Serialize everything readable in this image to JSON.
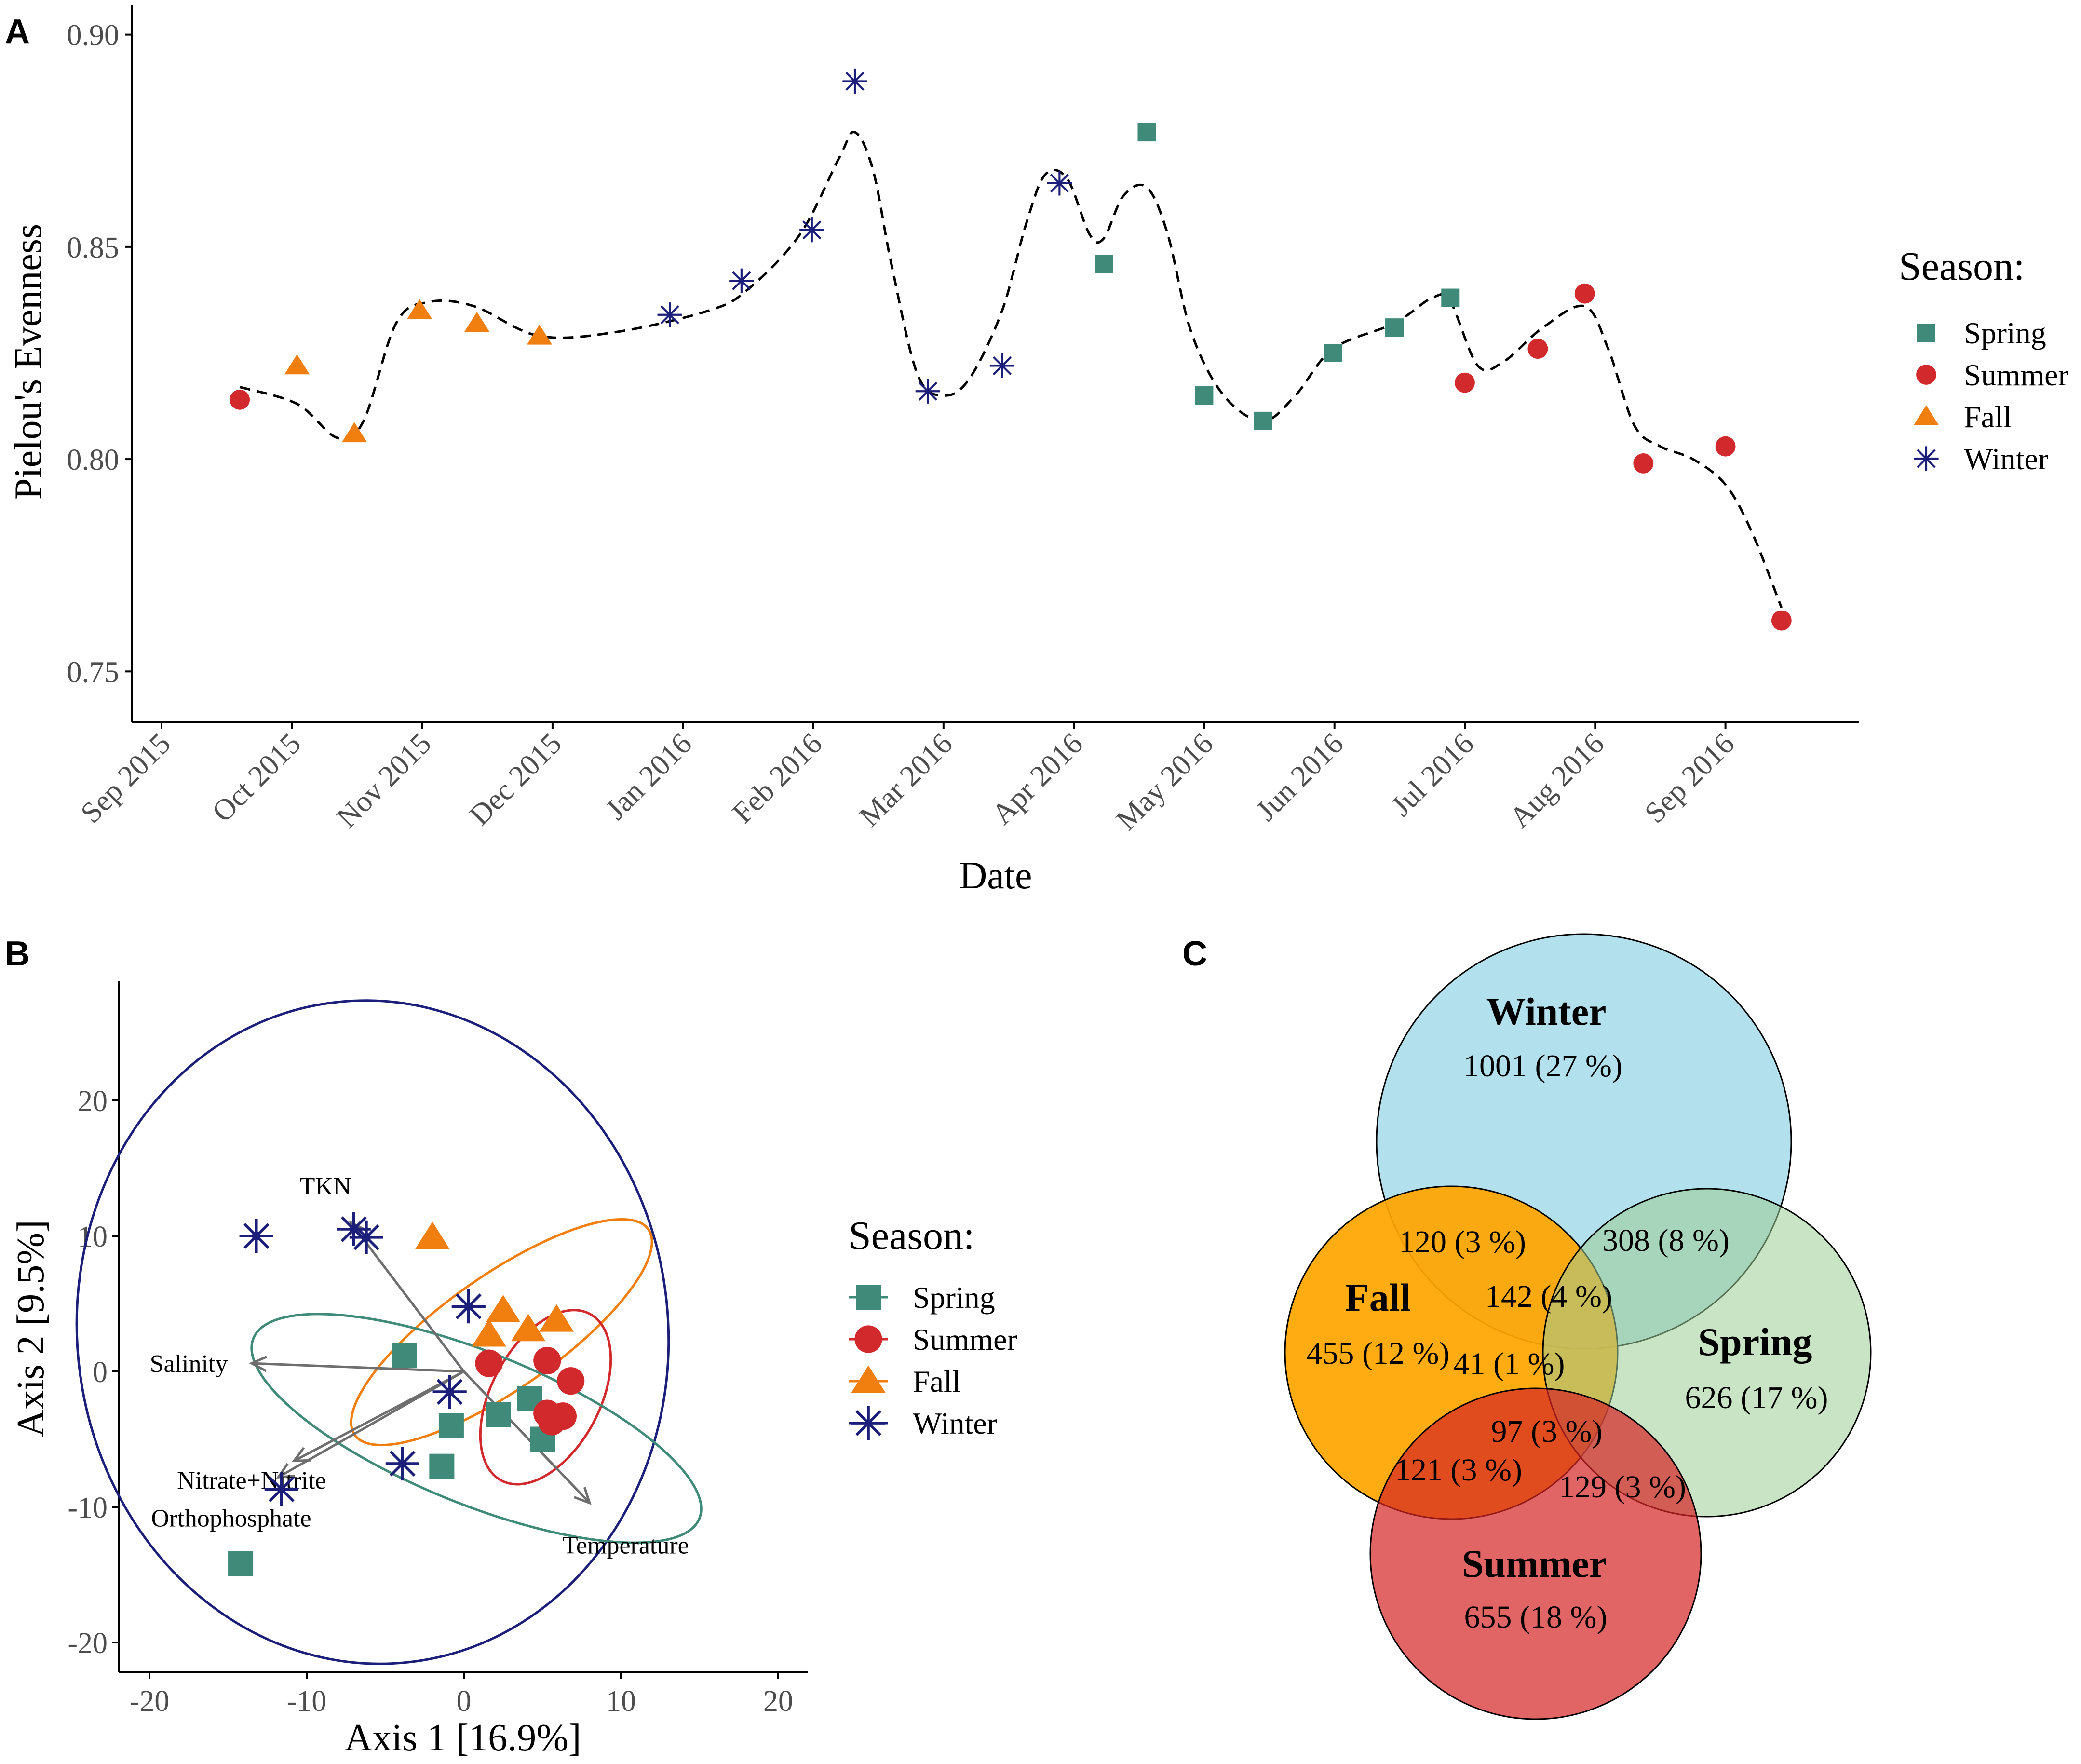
{
  "colors": {
    "spring": "#3f8a78",
    "summer": "#d1292c",
    "fall": "#f07f0f",
    "winter": "#1b1f7a",
    "axis": "#000000",
    "tick_text": "#4d4d4d",
    "arrow": "#6e6e6e"
  },
  "panels": {
    "a_label": "A",
    "b_label": "B",
    "c_label": "C"
  },
  "chart_data": [
    {
      "id": "A",
      "type": "scatter",
      "title": "",
      "xlabel": "Date",
      "ylabel": "Pielou's Evenness",
      "ylim": [
        0.738,
        0.907
      ],
      "xlim": [
        0,
        13.3
      ],
      "x_unit": "months since Sep 2015",
      "x_ticks": [
        {
          "label": "Sep 2015",
          "x": 0
        },
        {
          "label": "Oct 2015",
          "x": 1
        },
        {
          "label": "Nov 2015",
          "x": 2
        },
        {
          "label": "Dec 2015",
          "x": 3
        },
        {
          "label": "Jan 2016",
          "x": 4
        },
        {
          "label": "Feb 2016",
          "x": 5
        },
        {
          "label": "Mar 2016",
          "x": 6
        },
        {
          "label": "Apr 2016",
          "x": 7
        },
        {
          "label": "May 2016",
          "x": 8
        },
        {
          "label": "Jun 2016",
          "x": 9
        },
        {
          "label": "Jul 2016",
          "x": 10
        },
        {
          "label": "Aug 2016",
          "x": 11
        },
        {
          "label": "Sep 2016",
          "x": 12
        }
      ],
      "y_ticks": [
        {
          "label": "0.75",
          "v": 0.75
        },
        {
          "label": "0.80",
          "v": 0.8
        },
        {
          "label": "0.85",
          "v": 0.85
        },
        {
          "label": "0.90",
          "v": 0.9
        }
      ],
      "legend_title": "Season:",
      "legend": [
        "Spring",
        "Summer",
        "Fall",
        "Winter"
      ],
      "series": [
        {
          "name": "Summer",
          "points": [
            [
              0.6,
              0.814
            ],
            [
              10.0,
              0.818
            ],
            [
              10.56,
              0.826
            ],
            [
              10.92,
              0.839
            ],
            [
              11.37,
              0.799
            ],
            [
              12.0,
              0.803
            ],
            [
              12.43,
              0.762
            ]
          ]
        },
        {
          "name": "Fall",
          "points": [
            [
              1.04,
              0.822
            ],
            [
              1.48,
              0.806
            ],
            [
              1.98,
              0.835
            ],
            [
              2.42,
              0.832
            ],
            [
              2.9,
              0.829
            ]
          ]
        },
        {
          "name": "Winter",
          "points": [
            [
              3.9,
              0.834
            ],
            [
              4.45,
              0.842
            ],
            [
              4.99,
              0.854
            ],
            [
              5.32,
              0.889
            ],
            [
              5.88,
              0.816
            ],
            [
              6.45,
              0.822
            ],
            [
              6.89,
              0.865
            ]
          ]
        },
        {
          "name": "Spring",
          "points": [
            [
              7.23,
              0.846
            ],
            [
              7.56,
              0.877
            ],
            [
              8.0,
              0.815
            ],
            [
              8.45,
              0.809
            ],
            [
              8.99,
              0.825
            ],
            [
              9.46,
              0.831
            ],
            [
              9.89,
              0.838
            ]
          ]
        }
      ],
      "smooth": [
        [
          0.6,
          0.817
        ],
        [
          1.04,
          0.813
        ],
        [
          1.35,
          0.805
        ],
        [
          1.55,
          0.809
        ],
        [
          1.8,
          0.832
        ],
        [
          2.05,
          0.837
        ],
        [
          2.4,
          0.836
        ],
        [
          2.9,
          0.829
        ],
        [
          3.5,
          0.83
        ],
        [
          4.2,
          0.835
        ],
        [
          4.5,
          0.84
        ],
        [
          4.9,
          0.853
        ],
        [
          5.2,
          0.871
        ],
        [
          5.32,
          0.877
        ],
        [
          5.46,
          0.868
        ],
        [
          5.6,
          0.846
        ],
        [
          5.8,
          0.82
        ],
        [
          6.0,
          0.815
        ],
        [
          6.2,
          0.819
        ],
        [
          6.45,
          0.835
        ],
        [
          6.63,
          0.855
        ],
        [
          6.78,
          0.867
        ],
        [
          6.95,
          0.866
        ],
        [
          7.12,
          0.853
        ],
        [
          7.23,
          0.852
        ],
        [
          7.38,
          0.862
        ],
        [
          7.56,
          0.864
        ],
        [
          7.72,
          0.853
        ],
        [
          7.9,
          0.83
        ],
        [
          8.15,
          0.815
        ],
        [
          8.45,
          0.809
        ],
        [
          8.7,
          0.815
        ],
        [
          8.99,
          0.826
        ],
        [
          9.46,
          0.832
        ],
        [
          9.75,
          0.838
        ],
        [
          9.89,
          0.837
        ],
        [
          10.1,
          0.822
        ],
        [
          10.3,
          0.823
        ],
        [
          10.6,
          0.831
        ],
        [
          10.92,
          0.836
        ],
        [
          11.1,
          0.826
        ],
        [
          11.3,
          0.808
        ],
        [
          11.5,
          0.803
        ],
        [
          11.75,
          0.8
        ],
        [
          12.0,
          0.794
        ],
        [
          12.2,
          0.783
        ],
        [
          12.43,
          0.765
        ]
      ]
    },
    {
      "id": "B",
      "type": "scatter",
      "title": "",
      "xlabel": "Axis 1 [16.9%]",
      "ylabel": "Axis 2 [9.5%]",
      "xlim": [
        -22.5,
        22
      ],
      "ylim": [
        -22.5,
        29
      ],
      "x_ticks": [
        {
          "label": "-20",
          "v": -20
        },
        {
          "label": "-10",
          "v": -10
        },
        {
          "label": "0",
          "v": 0
        },
        {
          "label": "10",
          "v": 10
        },
        {
          "label": "20",
          "v": 20
        }
      ],
      "y_ticks": [
        {
          "label": "-20",
          "v": -20
        },
        {
          "label": "-10",
          "v": -10
        },
        {
          "label": "0",
          "v": 0
        },
        {
          "label": "10",
          "v": 10
        },
        {
          "label": "20",
          "v": 20
        }
      ],
      "legend_title": "Season:",
      "legend": [
        "Spring",
        "Summer",
        "Fall",
        "Winter"
      ],
      "series": [
        {
          "name": "Spring",
          "points": [
            [
              -3.8,
              1.2
            ],
            [
              -0.8,
              -4.0
            ],
            [
              2.2,
              -3.2
            ],
            [
              4.2,
              -2.0
            ],
            [
              5.0,
              -5.0
            ],
            [
              -1.4,
              -7.0
            ],
            [
              -14.2,
              -14.2
            ]
          ]
        },
        {
          "name": "Summer",
          "points": [
            [
              1.6,
              0.6
            ],
            [
              5.3,
              0.8
            ],
            [
              6.8,
              -0.7
            ],
            [
              5.3,
              -3.1
            ],
            [
              6.3,
              -3.3
            ],
            [
              5.6,
              -3.7
            ]
          ]
        },
        {
          "name": "Fall",
          "points": [
            [
              -2.0,
              9.9
            ],
            [
              2.5,
              4.5
            ],
            [
              4.1,
              3.1
            ],
            [
              5.9,
              3.8
            ],
            [
              1.6,
              2.7
            ]
          ]
        },
        {
          "name": "Winter",
          "points": [
            [
              -13.2,
              10.0
            ],
            [
              -7.0,
              10.5
            ],
            [
              -6.2,
              9.9
            ],
            [
              0.3,
              4.8
            ],
            [
              -0.9,
              -1.5
            ],
            [
              -3.9,
              -6.8
            ],
            [
              -11.6,
              -8.7
            ]
          ]
        }
      ],
      "ellipses": [
        {
          "name": "Winter",
          "cx": -5.8,
          "cy": 2.9,
          "rx": 18.8,
          "ry": 24.5,
          "angle_deg": -6
        },
        {
          "name": "Fall",
          "cx": 2.4,
          "cy": 2.9,
          "rx": 11.4,
          "ry": 4.2,
          "angle_deg": -35
        },
        {
          "name": "Summer",
          "cx": 5.2,
          "cy": -1.9,
          "rx": 6.0,
          "ry": 4.0,
          "angle_deg": -62
        },
        {
          "name": "Spring",
          "cx": 0.8,
          "cy": -4.2,
          "rx": 15.3,
          "ry": 5.6,
          "angle_deg": 22
        }
      ],
      "vectors": [
        {
          "label": "Salinity",
          "x": -13.5,
          "y": 0.6,
          "label_x": -17.5,
          "label_y": 0.6
        },
        {
          "label": "TKN",
          "x": -7.2,
          "y": 11.0,
          "label_x": -8.8,
          "label_y": 13.7
        },
        {
          "label": "Nitrate+Nitrite",
          "x": -11.8,
          "y": -7.8,
          "label_x": -13.5,
          "label_y": -8.0
        },
        {
          "label": "Orthophosphate",
          "x": -10.8,
          "y": -6.6,
          "label_x": -14.8,
          "label_y": -10.8
        },
        {
          "label": "Temperature",
          "x": 8.0,
          "y": -9.7,
          "label_x": 10.3,
          "label_y": -12.8
        }
      ]
    },
    {
      "id": "C",
      "type": "venn",
      "sets": [
        {
          "name": "Winter",
          "label": "Winter",
          "count": "1001 (27 %)"
        },
        {
          "name": "Fall",
          "label": "Fall",
          "count": "455 (12 %)"
        },
        {
          "name": "Spring",
          "label": "Spring",
          "count": "626 (17 %)"
        },
        {
          "name": "Summer",
          "label": "Summer",
          "count": "655 (18 %)"
        }
      ],
      "intersections": [
        {
          "sets": [
            "Winter",
            "Fall"
          ],
          "count": "120 (3 %)"
        },
        {
          "sets": [
            "Winter",
            "Spring"
          ],
          "count": "308 (8 %)"
        },
        {
          "sets": [
            "Winter",
            "Fall",
            "Spring"
          ],
          "count": "142 (4 %)"
        },
        {
          "sets": [
            "Fall",
            "Spring"
          ],
          "count": "41 (1 %)"
        },
        {
          "sets": [
            "Fall",
            "Spring",
            "Summer"
          ],
          "count": "97 (3 %)"
        },
        {
          "sets": [
            "Fall",
            "Summer"
          ],
          "count": "121 (3 %)"
        },
        {
          "sets": [
            "Spring",
            "Summer"
          ],
          "count": "129 (3 %)"
        }
      ],
      "set_colors": {
        "Winter": "#b2e0ec",
        "Fall": "#ffa500",
        "Spring": "#9ccc95",
        "Summer": "#d42424"
      }
    }
  ]
}
